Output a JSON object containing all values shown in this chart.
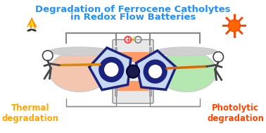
{
  "title_line1": "Degradation of Ferrocene Catholytes",
  "title_line2": "in Redox Flow Batteries",
  "title_color": "#1e90ff",
  "label_left": "Thermal\ndegradation",
  "label_right": "Photolytic\ndegradation",
  "label_left_color": "#ffa500",
  "label_right_color": "#ff4500",
  "bg_color": "#ffffff",
  "fig_width": 3.78,
  "fig_height": 1.89,
  "dpi": 100
}
